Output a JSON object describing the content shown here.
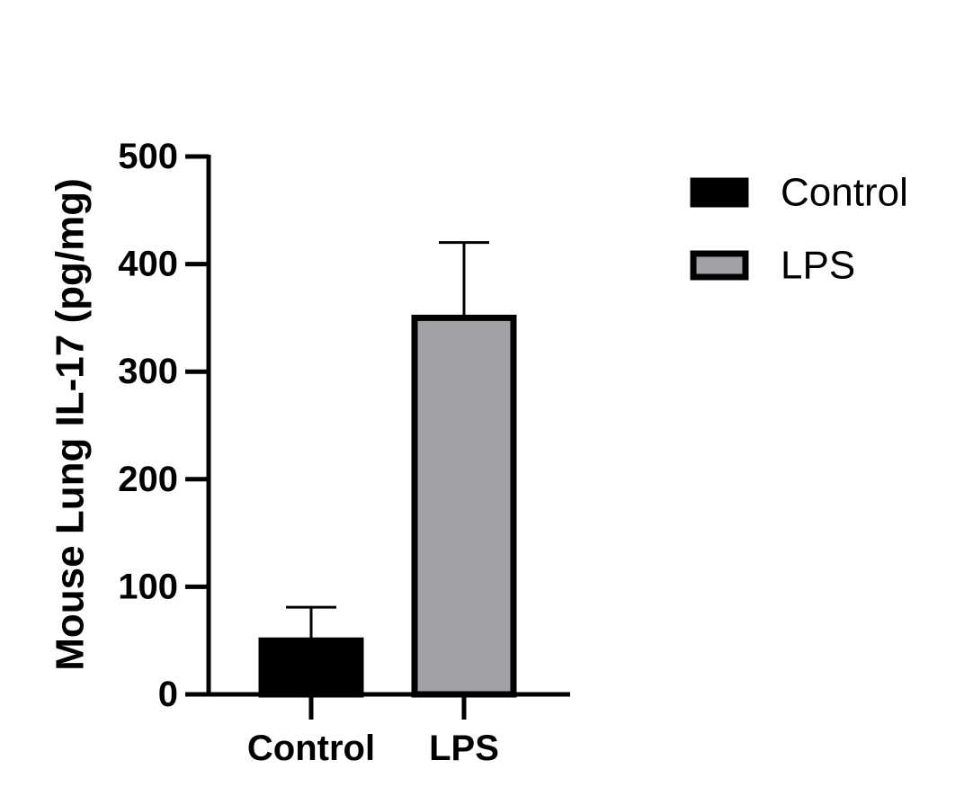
{
  "chart_data": {
    "type": "bar",
    "categories": [
      "Control",
      "LPS"
    ],
    "values": [
      50,
      350
    ],
    "error_upper": [
      81,
      420
    ],
    "ylabel": "Mouse Lung IL-17 (pg/mg)",
    "xlabel": "",
    "ylim": [
      0,
      500
    ],
    "yticks": [
      "0",
      "100",
      "200",
      "300",
      "400",
      "500"
    ],
    "bar_colors": [
      "#000000",
      "#a2a2a6"
    ],
    "legend": {
      "position": "top-right",
      "entries": [
        {
          "label": "Control",
          "color": "#000000"
        },
        {
          "label": "LPS",
          "color": "#a2a2a6"
        }
      ]
    },
    "grid": false
  }
}
